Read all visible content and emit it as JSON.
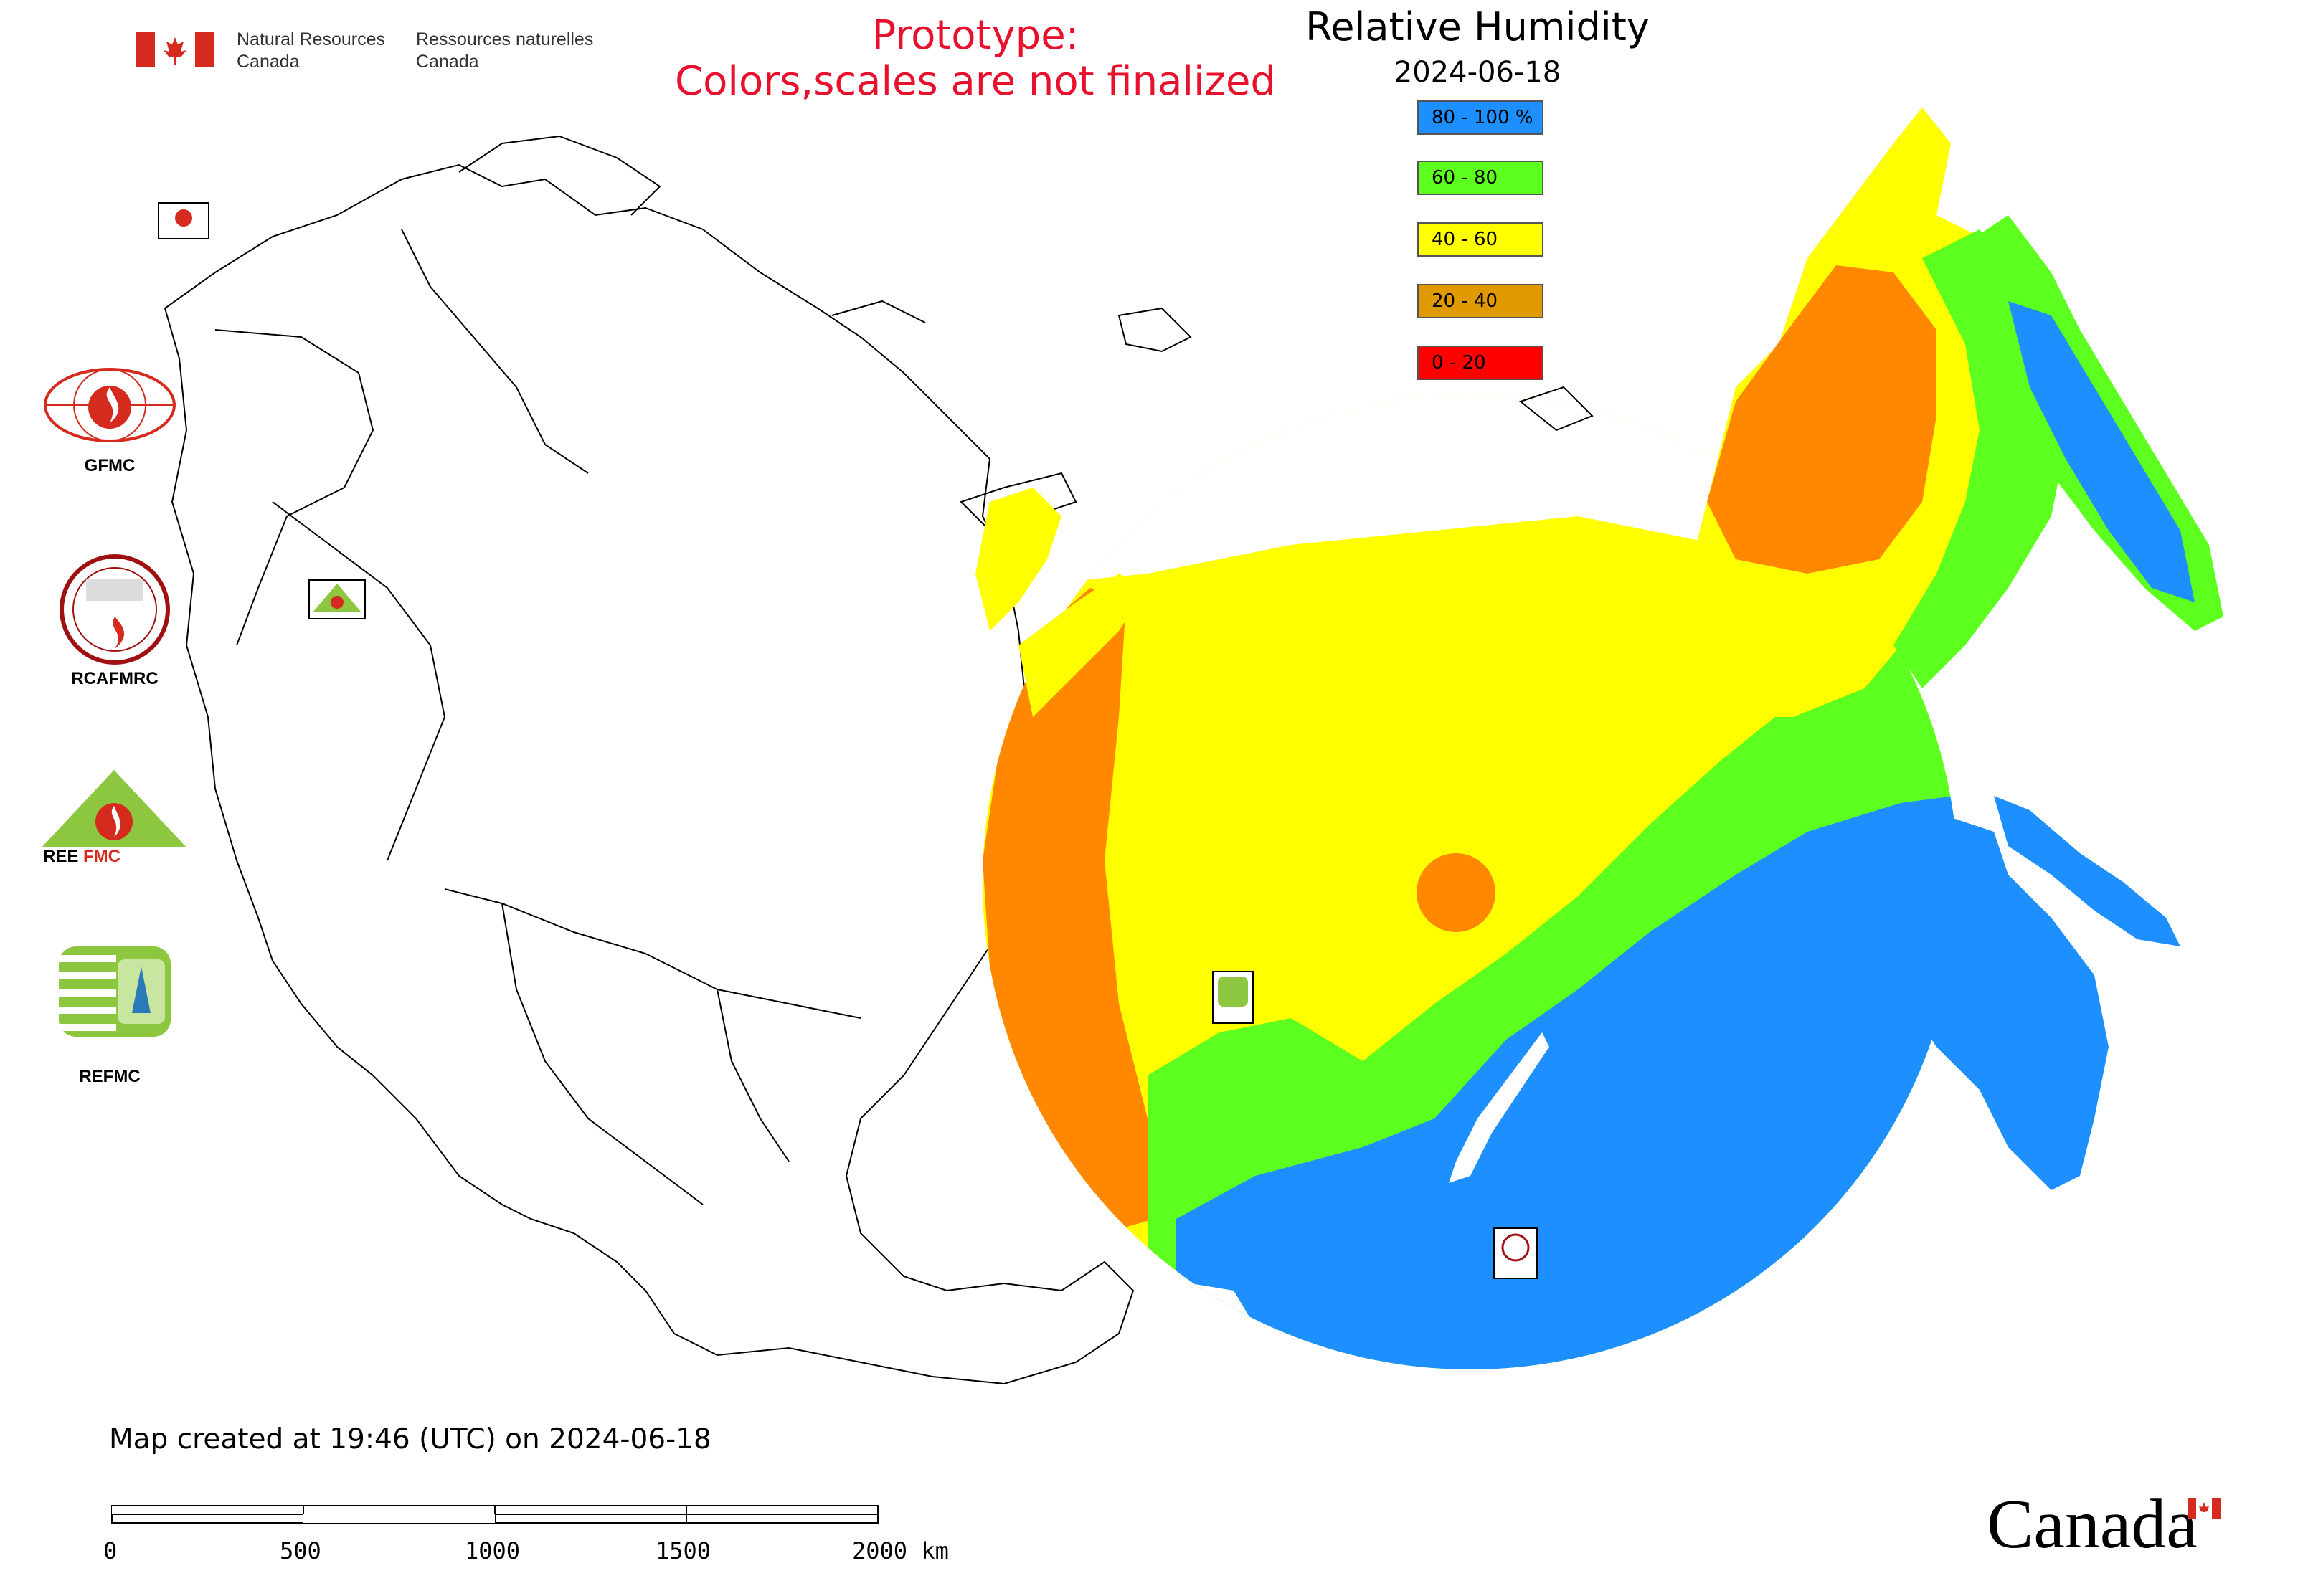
{
  "header": {
    "org_en_line1": "Natural Resources",
    "org_en_line2": "Canada",
    "org_fr_line1": "Ressources naturelles",
    "org_fr_line2": "Canada",
    "flag_color": "#d52b1e"
  },
  "notice": {
    "line1": "Prototype:",
    "line2": "Colors,scales are not finalized",
    "color": "#e8112d"
  },
  "legend": {
    "title": "Relative Humidity",
    "date": "2024-06-18",
    "items": [
      {
        "label": "80 - 100 %",
        "color": "#1e8fff"
      },
      {
        "label": "60 - 80",
        "color": "#5cff1e"
      },
      {
        "label": "40 - 60",
        "color": "#ffff00"
      },
      {
        "label": "20 - 40",
        "color": "#e09a00"
      },
      {
        "label": "0 - 20",
        "color": "#ff0000"
      }
    ]
  },
  "side_logos": [
    {
      "label": "GFMC",
      "icon": "gfmc-logo"
    },
    {
      "label": "RCAFMRC",
      "icon": "rcafmrc-logo"
    },
    {
      "label": "REEFMC",
      "icon": "reefmc-logo"
    },
    {
      "label": "REFMC",
      "icon": "refmc-logo"
    }
  ],
  "map_markers": [
    {
      "label": "GFMC",
      "icon": "gfmc-marker"
    },
    {
      "label": "REEFMC",
      "icon": "reefmc-marker"
    },
    {
      "label": "REFMC",
      "icon": "refmc-marker"
    },
    {
      "label": "RCAFMRC",
      "icon": "rcafmrc-marker"
    }
  ],
  "footer": {
    "created": "Map created at 19:46 (UTC) on 2024-06-18",
    "scale_labels": [
      "0",
      "500",
      "1000",
      "1500",
      "2000 km"
    ],
    "wordmark": "Canada"
  }
}
